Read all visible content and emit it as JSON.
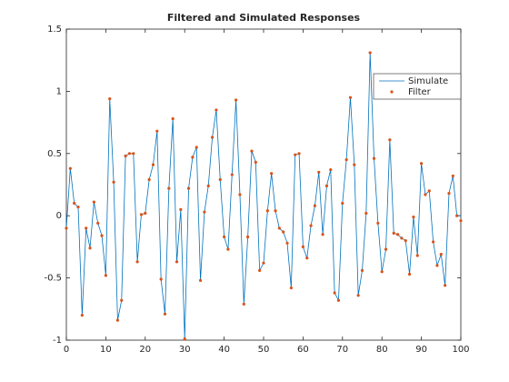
{
  "chart_data": {
    "type": "line",
    "title": "Filtered and Simulated Responses",
    "x": [
      0,
      1,
      2,
      3,
      4,
      5,
      6,
      7,
      8,
      9,
      10,
      11,
      12,
      13,
      14,
      15,
      16,
      17,
      18,
      19,
      20,
      21,
      22,
      23,
      24,
      25,
      26,
      27,
      28,
      29,
      30,
      31,
      32,
      33,
      34,
      35,
      36,
      37,
      38,
      39,
      40,
      41,
      42,
      43,
      44,
      45,
      46,
      47,
      48,
      49,
      50,
      51,
      52,
      53,
      54,
      55,
      56,
      57,
      58,
      59,
      60,
      61,
      62,
      63,
      64,
      65,
      66,
      67,
      68,
      69,
      70,
      71,
      72,
      73,
      74,
      75,
      76,
      77,
      78,
      79,
      80,
      81,
      82,
      83,
      84,
      85,
      86,
      87,
      88,
      89,
      90,
      91,
      92,
      93,
      94,
      95,
      96,
      97,
      98,
      99,
      100
    ],
    "series": [
      {
        "name": "Simulate",
        "color": "#0072bd",
        "style": "line",
        "values": [
          -0.1,
          0.38,
          0.1,
          0.07,
          -0.8,
          -0.1,
          -0.26,
          0.11,
          -0.06,
          -0.16,
          -0.48,
          0.94,
          0.27,
          -0.84,
          -0.68,
          0.48,
          0.5,
          0.5,
          -0.37,
          0.01,
          0.02,
          0.29,
          0.41,
          0.68,
          -0.51,
          -0.79,
          0.22,
          0.78,
          -0.37,
          0.05,
          -0.99,
          0.22,
          0.47,
          0.55,
          -0.52,
          0.03,
          0.24,
          0.63,
          0.85,
          0.29,
          -0.17,
          -0.27,
          0.33,
          0.93,
          0.17,
          -0.71,
          -0.17,
          0.52,
          0.43,
          -0.44,
          -0.38,
          0.04,
          0.34,
          0.04,
          -0.1,
          -0.13,
          -0.22,
          -0.58,
          0.49,
          0.5,
          -0.25,
          -0.34,
          -0.08,
          0.08,
          0.35,
          -0.15,
          0.24,
          0.37,
          -0.62,
          -0.68,
          0.1,
          0.45,
          0.95,
          0.41,
          -0.64,
          -0.44,
          0.02,
          1.31,
          0.46,
          -0.06,
          -0.45,
          -0.27,
          0.61,
          -0.14,
          -0.15,
          -0.18,
          -0.2,
          -0.47,
          -0.01,
          -0.32,
          0.42,
          0.17,
          0.2,
          -0.21,
          -0.4,
          -0.31,
          -0.56,
          0.18,
          0.32,
          0.0,
          0.0
        ]
      },
      {
        "name": "Filter",
        "color": "#d95319",
        "style": "marker",
        "values": [
          -0.1,
          0.38,
          0.1,
          0.07,
          -0.8,
          -0.1,
          -0.26,
          0.11,
          -0.06,
          -0.16,
          -0.48,
          0.94,
          0.27,
          -0.84,
          -0.68,
          0.48,
          0.5,
          0.5,
          -0.37,
          0.01,
          0.02,
          0.29,
          0.41,
          0.68,
          -0.51,
          -0.79,
          0.22,
          0.78,
          -0.37,
          0.05,
          -0.99,
          0.22,
          0.47,
          0.55,
          -0.52,
          0.03,
          0.24,
          0.63,
          0.85,
          0.29,
          -0.17,
          -0.27,
          0.33,
          0.93,
          0.17,
          -0.71,
          -0.17,
          0.52,
          0.43,
          -0.44,
          -0.38,
          0.04,
          0.34,
          0.04,
          -0.1,
          -0.13,
          -0.22,
          -0.58,
          0.49,
          0.5,
          -0.25,
          -0.34,
          -0.08,
          0.08,
          0.35,
          -0.15,
          0.24,
          0.37,
          -0.62,
          -0.68,
          0.1,
          0.45,
          0.95,
          0.41,
          -0.64,
          -0.44,
          0.02,
          1.31,
          0.46,
          -0.06,
          -0.45,
          -0.27,
          0.61,
          -0.14,
          -0.15,
          -0.18,
          -0.2,
          -0.47,
          -0.01,
          -0.32,
          0.42,
          0.17,
          0.2,
          -0.21,
          -0.4,
          -0.31,
          -0.56,
          0.18,
          0.32,
          0.0,
          -0.04
        ]
      }
    ],
    "xlim": [
      0,
      100
    ],
    "xticks": [
      0,
      10,
      20,
      30,
      40,
      50,
      60,
      70,
      80,
      90,
      100
    ],
    "ylim": [
      -1,
      1.5
    ],
    "yticks": [
      -1,
      -0.5,
      0,
      0.5,
      1,
      1.5
    ],
    "legend": "northeast"
  }
}
